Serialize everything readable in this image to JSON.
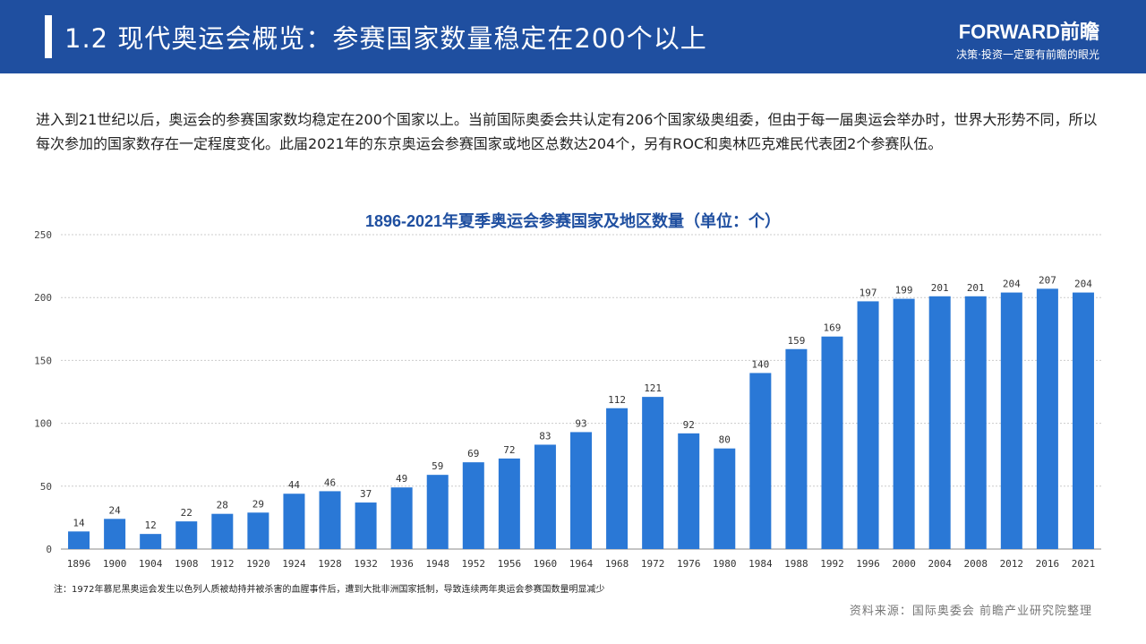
{
  "header": {
    "title": "1.2 现代奥运会概览：参赛国家数量稳定在200个以上",
    "logo_name": "FORWARD前瞻",
    "logo_slogan": "决策·投资一定要有前瞻的眼光"
  },
  "intro": "进入到21世纪以后，奥运会的参赛国家数均稳定在200个国家以上。当前国际奥委会共认定有206个国家级奥组委，但由于每一届奥运会举办时，世界大形势不同，所以每次参加的国家数存在一定程度变化。此届2021年的东京奥运会参赛国家或地区总数达204个，另有ROC和奥林匹克难民代表团2个参赛队伍。",
  "chart_data": {
    "type": "bar",
    "title": "1896-2021年夏季奥运会参赛国家及地区数量（单位：个）",
    "categories": [
      "1896",
      "1900",
      "1904",
      "1908",
      "1912",
      "1920",
      "1924",
      "1928",
      "1932",
      "1936",
      "1948",
      "1952",
      "1956",
      "1960",
      "1964",
      "1968",
      "1972",
      "1976",
      "1980",
      "1984",
      "1988",
      "1992",
      "1996",
      "2000",
      "2004",
      "2008",
      "2012",
      "2016",
      "2021"
    ],
    "values": [
      14,
      24,
      12,
      22,
      28,
      29,
      44,
      46,
      37,
      49,
      59,
      69,
      72,
      83,
      93,
      112,
      121,
      92,
      80,
      140,
      159,
      169,
      197,
      199,
      201,
      201,
      204,
      207,
      204
    ],
    "ylim": [
      0,
      250
    ],
    "yticks": [
      0,
      50,
      100,
      150,
      200,
      250
    ],
    "grid": true,
    "bar_color": "#2a78d6"
  },
  "note": "注：1972年慕尼黑奥运会发生以色列人质被劫持并被杀害的血腥事件后，遭到大批非洲国家抵制，导致连续两年奥运会参赛国数量明显减少",
  "source": "资料来源：国际奥委会 前瞻产业研究院整理"
}
